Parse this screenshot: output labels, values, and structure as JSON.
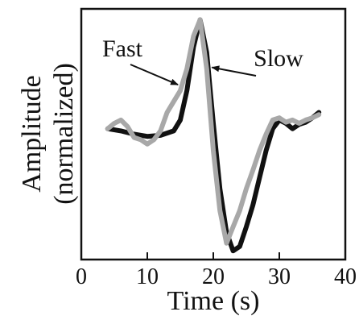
{
  "chart_data": {
    "type": "line",
    "title": "",
    "xlabel": "Time (s)",
    "ylabel_lines": [
      "Amplitude",
      "(normalized)"
    ],
    "xlim": [
      0,
      40
    ],
    "ylim": [
      -1.2,
      1.1
    ],
    "xticks": [
      0,
      10,
      20,
      30,
      40
    ],
    "xtick_labels": [
      "0",
      "10",
      "20",
      "30",
      "40"
    ],
    "grid": false,
    "legend": "none",
    "series": [
      {
        "name": "Slow",
        "color": "#111111",
        "x": [
          4,
          6,
          8,
          10,
          12,
          14,
          15,
          16,
          17,
          18,
          19,
          20,
          21,
          22,
          23,
          24,
          25,
          26,
          27,
          28,
          29,
          30,
          31,
          32,
          33,
          34,
          35,
          36
        ],
        "y": [
          0.0,
          -0.02,
          -0.05,
          -0.07,
          -0.06,
          -0.02,
          0.08,
          0.35,
          0.75,
          1.0,
          0.7,
          0.05,
          -0.55,
          -0.95,
          -1.12,
          -1.08,
          -0.9,
          -0.7,
          -0.45,
          -0.2,
          0.0,
          0.08,
          0.05,
          0.0,
          0.04,
          0.06,
          0.1,
          0.15
        ]
      },
      {
        "name": "Fast",
        "color": "#a8a8a8",
        "x": [
          4,
          5,
          6,
          7,
          8,
          9,
          10,
          11,
          12,
          13,
          14,
          15,
          16,
          17,
          18,
          19,
          20,
          21,
          22,
          23,
          24,
          25,
          26,
          27,
          28,
          29,
          30,
          31,
          32,
          33,
          34,
          35,
          36
        ],
        "y": [
          0.0,
          0.05,
          0.08,
          0.02,
          -0.08,
          -0.1,
          -0.14,
          -0.1,
          -0.02,
          0.15,
          0.25,
          0.35,
          0.55,
          0.85,
          1.0,
          0.55,
          -0.2,
          -0.75,
          -1.05,
          -0.9,
          -0.75,
          -0.55,
          -0.38,
          -0.2,
          -0.05,
          0.08,
          0.1,
          0.06,
          0.08,
          0.05,
          0.08,
          0.1,
          0.13
        ]
      }
    ],
    "annotations": [
      {
        "text": "Fast",
        "series": "Fast",
        "at_x": 15.2
      },
      {
        "text": "Slow",
        "series": "Slow",
        "at_x": 19.2
      }
    ]
  }
}
